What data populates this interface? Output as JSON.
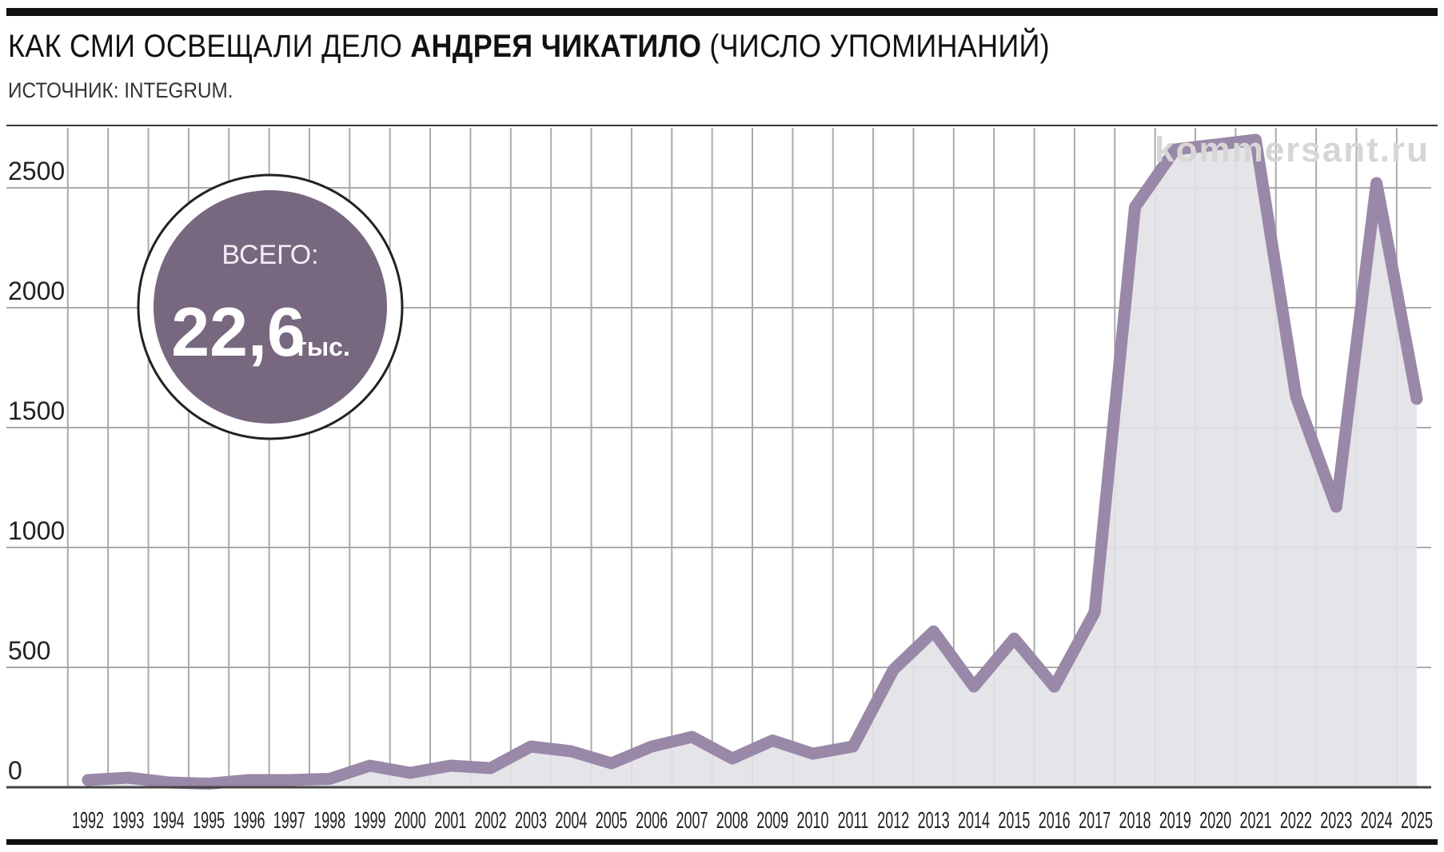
{
  "header": {
    "title_prefix": "КАК СМИ ОСВЕЩАЛИ ДЕЛО",
    "title_bold": "АНДРЕЯ ЧИКАТИЛО",
    "title_suffix": "(ЧИСЛО УПОМИНАНИЙ)",
    "source": "ИСТОЧНИК: INTEGRUM."
  },
  "watermark": "kommersant.ru",
  "badge": {
    "label": "ВСЕГО:",
    "value": "22,6",
    "unit": "тыс."
  },
  "colors": {
    "line": "#9a88a8",
    "area": "#e1e1e7",
    "badge": "#77677f",
    "grid": "#aaaaaa"
  },
  "chart_data": {
    "type": "line",
    "x": [
      "1992",
      "1993",
      "1994",
      "1995",
      "1996",
      "1997",
      "1998",
      "1999",
      "2000",
      "2001",
      "2002",
      "2003",
      "2004",
      "2005",
      "2006",
      "2007",
      "2008",
      "2009",
      "2010",
      "2011",
      "2012",
      "2013",
      "2014",
      "2015",
      "2016",
      "2017",
      "2018",
      "2019",
      "2020",
      "2021",
      "2022",
      "2023",
      "2024",
      "2025"
    ],
    "values": [
      30,
      40,
      20,
      15,
      30,
      30,
      35,
      90,
      60,
      90,
      80,
      170,
      150,
      100,
      170,
      210,
      120,
      195,
      140,
      170,
      490,
      650,
      420,
      620,
      420,
      730,
      2420,
      2660,
      2680,
      2700,
      1630,
      1170,
      2520,
      1620
    ],
    "ylim": [
      0,
      2750
    ],
    "yticks": [
      0,
      500,
      1000,
      1500,
      2000,
      2500
    ],
    "grid": true,
    "area_fill": true
  }
}
